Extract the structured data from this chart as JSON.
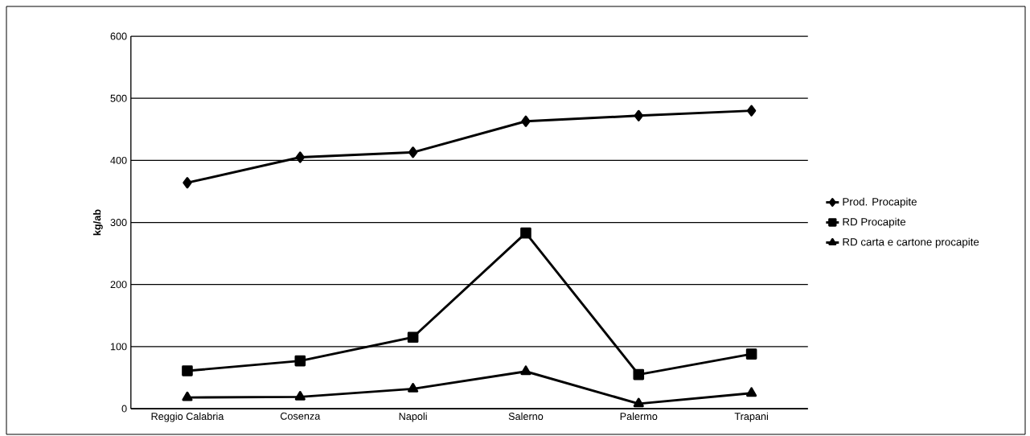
{
  "chart_data": {
    "type": "line",
    "ylabel": "kg/ab",
    "categories": [
      "Reggio Calabria",
      "Cosenza",
      "Napoli",
      "Salerno",
      "Palermo",
      "Trapani"
    ],
    "series": [
      {
        "name": "Prod. Procapite",
        "color": "#000000",
        "marker": "diamond",
        "values": [
          364,
          405,
          413,
          463,
          472,
          480
        ]
      },
      {
        "name": "RD Procapite",
        "color": "#000000",
        "marker": "square",
        "values": [
          61,
          77,
          115,
          283,
          55,
          88
        ]
      },
      {
        "name": "RD carta e cartone procapite",
        "color": "#000000",
        "marker": "triangle",
        "values": [
          18,
          19,
          32,
          60,
          8,
          25
        ]
      }
    ],
    "ylim": [
      0,
      600
    ],
    "yticks": [
      0,
      100,
      200,
      300,
      400,
      500,
      600
    ],
    "grid": "y",
    "legend": "right",
    "line_style": "solid"
  }
}
